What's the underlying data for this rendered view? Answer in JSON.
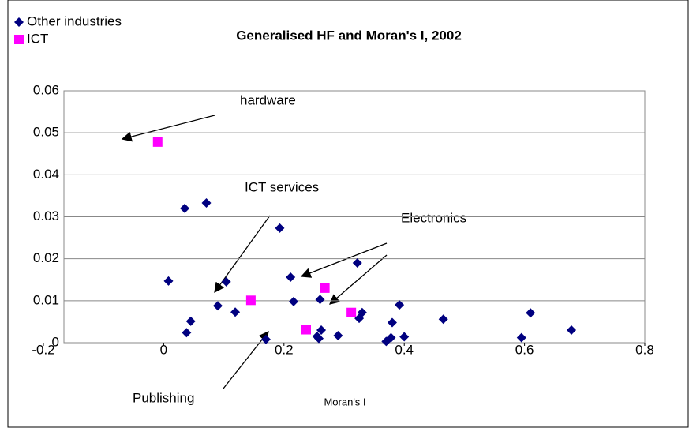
{
  "chart_data": {
    "type": "scatter",
    "title": "Generalised HF and Moran's I, 2002",
    "x_label": "Moran's I",
    "series": [
      {
        "name": "Other industries",
        "color": "#000080",
        "marker": "diamond",
        "x": [
          0.008,
          0.035,
          0.071,
          0.045,
          0.038,
          0.09,
          0.104,
          0.119,
          0.17,
          0.193,
          0.211,
          0.216,
          0.26,
          0.262,
          0.255,
          0.258,
          0.29,
          0.322,
          0.325,
          0.33,
          0.37,
          0.378,
          0.38,
          0.392,
          0.4,
          0.465,
          0.595,
          0.61,
          0.678
        ],
        "values": [
          0.0147,
          0.032,
          0.0333,
          0.0051,
          0.0024,
          0.0088,
          0.0145,
          0.0073,
          0.0008,
          0.0273,
          0.0156,
          0.0098,
          0.0103,
          0.003,
          0.0015,
          0.001,
          0.0017,
          0.019,
          0.0058,
          0.0072,
          0.0003,
          0.0012,
          0.0048,
          0.009,
          0.0014,
          0.0056,
          0.0012,
          0.0071,
          0.003
        ]
      },
      {
        "name": "ICT",
        "color": "#ff00ff",
        "marker": "square",
        "x": [
          -0.01,
          0.145,
          0.237,
          0.268,
          0.312
        ],
        "values": [
          0.0478,
          0.0101,
          0.0031,
          0.013,
          0.0072
        ]
      }
    ],
    "annotations": [
      "hardware",
      "ICT services",
      "Electronics",
      "Publishing"
    ],
    "xlim": [
      -0.2,
      0.8
    ],
    "xticks": [
      -0.2,
      0,
      0.2,
      0.4,
      0.6,
      0.8
    ],
    "ylim": [
      0,
      0.06
    ],
    "yticks": [
      0,
      0.01,
      0.02,
      0.03,
      0.04,
      0.05,
      0.06
    ],
    "grid": true,
    "legend": "top-left"
  }
}
